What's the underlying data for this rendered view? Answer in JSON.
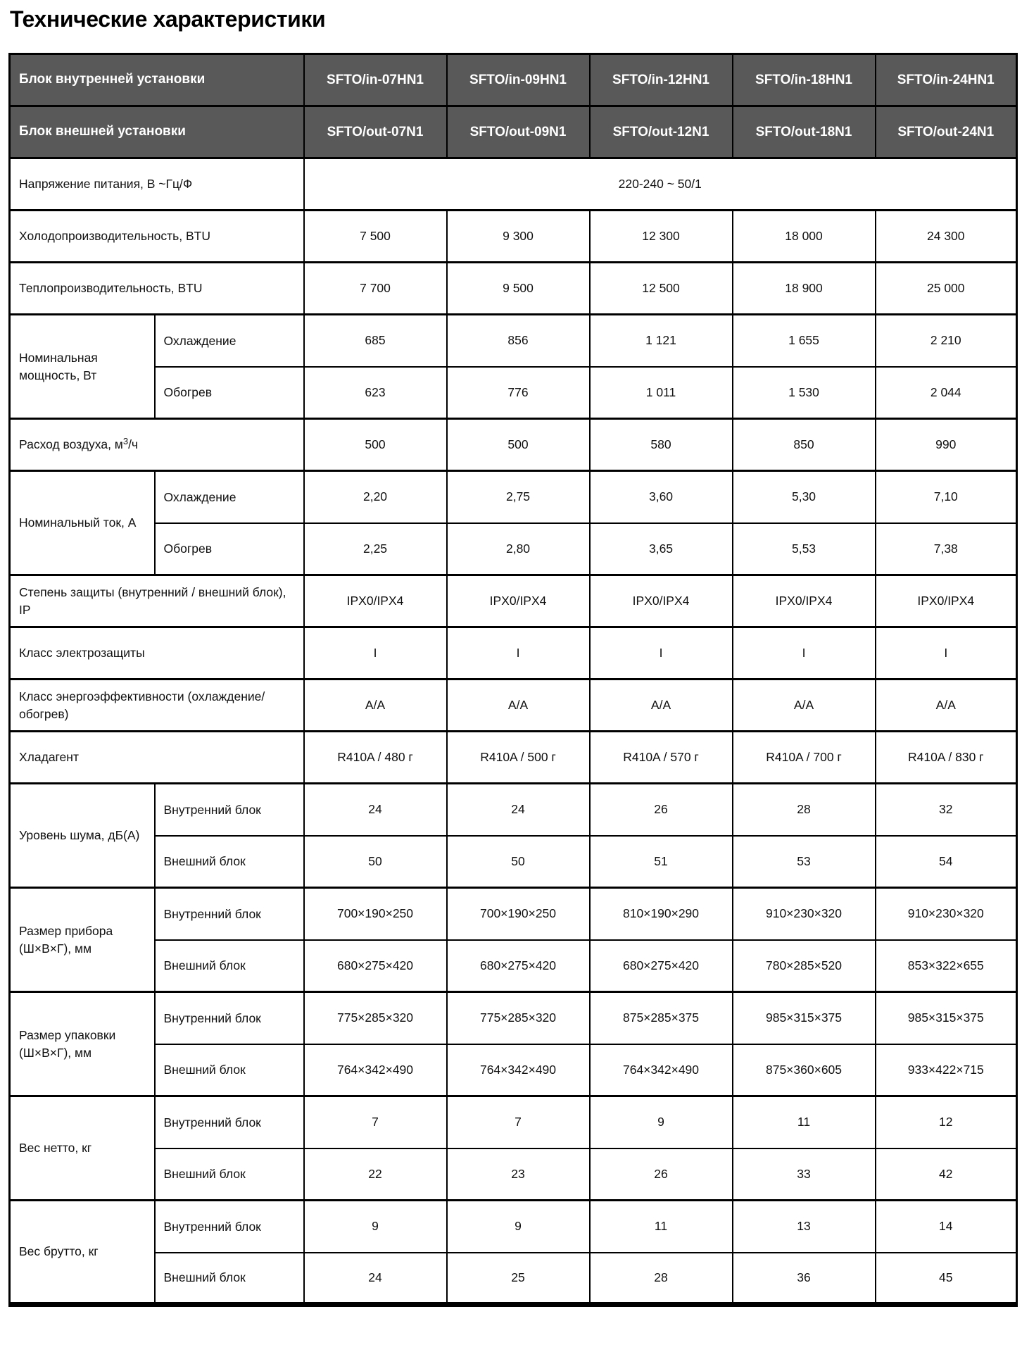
{
  "page_title": "Технические характеристики",
  "colors": {
    "header_bg": "#595959",
    "header_text": "#ffffff",
    "border": "#000000",
    "body_bg": "#ffffff",
    "body_text": "#111111"
  },
  "table": {
    "header_rows": [
      {
        "label": "Блок внутренней установки",
        "values": [
          "SFTO/in-07HN1",
          "SFTO/in-09HN1",
          "SFTO/in-12HN1",
          "SFTO/in-18HN1",
          "SFTO/in-24HN1"
        ]
      },
      {
        "label": "Блок внешней установки",
        "values": [
          "SFTO/out-07N1",
          "SFTO/out-09N1",
          "SFTO/out-12N1",
          "SFTO/out-18N1",
          "SFTO/out-24N1"
        ]
      }
    ],
    "rows": [
      {
        "type": "merged",
        "label": "Напряжение питания, В ~Гц/Ф",
        "value": "220-240 ~ 50/1"
      },
      {
        "type": "simple",
        "label": "Холодопроизводительность, BTU",
        "values": [
          "7 500",
          "9 300",
          "12 300",
          "18 000",
          "24 300"
        ]
      },
      {
        "type": "simple",
        "label": "Теплопроизводительность, BTU",
        "values": [
          "7 700",
          "9 500",
          "12 500",
          "18 900",
          "25 000"
        ]
      },
      {
        "type": "group",
        "label": "Номинальная мощность, Вт",
        "subrows": [
          {
            "label": "Охлаждение",
            "values": [
              "685",
              "856",
              "1 121",
              "1 655",
              "2 210"
            ]
          },
          {
            "label": "Обогрев",
            "values": [
              "623",
              "776",
              "1 011",
              "1 530",
              "2 044"
            ]
          }
        ]
      },
      {
        "type": "simple",
        "label": "Расход воздуха, м3/ч",
        "label_parts": [
          {
            "t": "Расход воздуха, м"
          },
          {
            "t": "3",
            "sup": true
          },
          {
            "t": "/ч"
          }
        ],
        "values": [
          "500",
          "500",
          "580",
          "850",
          "990"
        ]
      },
      {
        "type": "group",
        "label": "Номинальный ток, А",
        "subrows": [
          {
            "label": "Охлаждение",
            "values": [
              "2,20",
              "2,75",
              "3,60",
              "5,30",
              "7,10"
            ]
          },
          {
            "label": "Обогрев",
            "values": [
              "2,25",
              "2,80",
              "3,65",
              "5,53",
              "7,38"
            ]
          }
        ]
      },
      {
        "type": "simple",
        "label": "Степень защиты (внутренний / внешний блок), IP",
        "values": [
          "IPX0/IPX4",
          "IPX0/IPX4",
          "IPX0/IPX4",
          "IPX0/IPX4",
          "IPX0/IPX4"
        ]
      },
      {
        "type": "simple",
        "label": "Класс электрозащиты",
        "values": [
          "I",
          "I",
          "I",
          "I",
          "I"
        ]
      },
      {
        "type": "simple",
        "label": "Класс энергоэффективности (охлаждение/обогрев)",
        "values": [
          "A/A",
          "A/A",
          "A/A",
          "A/A",
          "A/A"
        ]
      },
      {
        "type": "simple",
        "label": "Хладагент",
        "values": [
          "R410A / 480 г",
          "R410A / 500 г",
          "R410A / 570 г",
          "R410A / 700 г",
          "R410A / 830 г"
        ]
      },
      {
        "type": "group",
        "label": "Уровень шума, дБ(А)",
        "subrows": [
          {
            "label": "Внутренний блок",
            "values": [
              "24",
              "24",
              "26",
              "28",
              "32"
            ]
          },
          {
            "label": "Внешний блок",
            "values": [
              "50",
              "50",
              "51",
              "53",
              "54"
            ]
          }
        ]
      },
      {
        "type": "group",
        "label": "Размер прибора (Ш×В×Г), мм",
        "subrows": [
          {
            "label": "Внутренний блок",
            "values": [
              "700×190×250",
              "700×190×250",
              "810×190×290",
              "910×230×320",
              "910×230×320"
            ]
          },
          {
            "label": "Внешний блок",
            "values": [
              "680×275×420",
              "680×275×420",
              "680×275×420",
              "780×285×520",
              "853×322×655"
            ]
          }
        ]
      },
      {
        "type": "group",
        "label": "Размер упаковки (Ш×В×Г), мм",
        "subrows": [
          {
            "label": "Внутренний блок",
            "values": [
              "775×285×320",
              "775×285×320",
              "875×285×375",
              "985×315×375",
              "985×315×375"
            ]
          },
          {
            "label": "Внешний блок",
            "values": [
              "764×342×490",
              "764×342×490",
              "764×342×490",
              "875×360×605",
              "933×422×715"
            ]
          }
        ]
      },
      {
        "type": "group",
        "label": "Вес нетто, кг",
        "subrows": [
          {
            "label": "Внутренний блок",
            "values": [
              "7",
              "7",
              "9",
              "11",
              "12"
            ]
          },
          {
            "label": "Внешний блок",
            "values": [
              "22",
              "23",
              "26",
              "33",
              "42"
            ]
          }
        ]
      },
      {
        "type": "group",
        "label": "Вес брутто, кг",
        "subrows": [
          {
            "label": "Внутренний блок",
            "values": [
              "9",
              "9",
              "11",
              "13",
              "14"
            ]
          },
          {
            "label": "Внешний блок",
            "values": [
              "24",
              "25",
              "28",
              "36",
              "45"
            ]
          }
        ]
      }
    ]
  }
}
